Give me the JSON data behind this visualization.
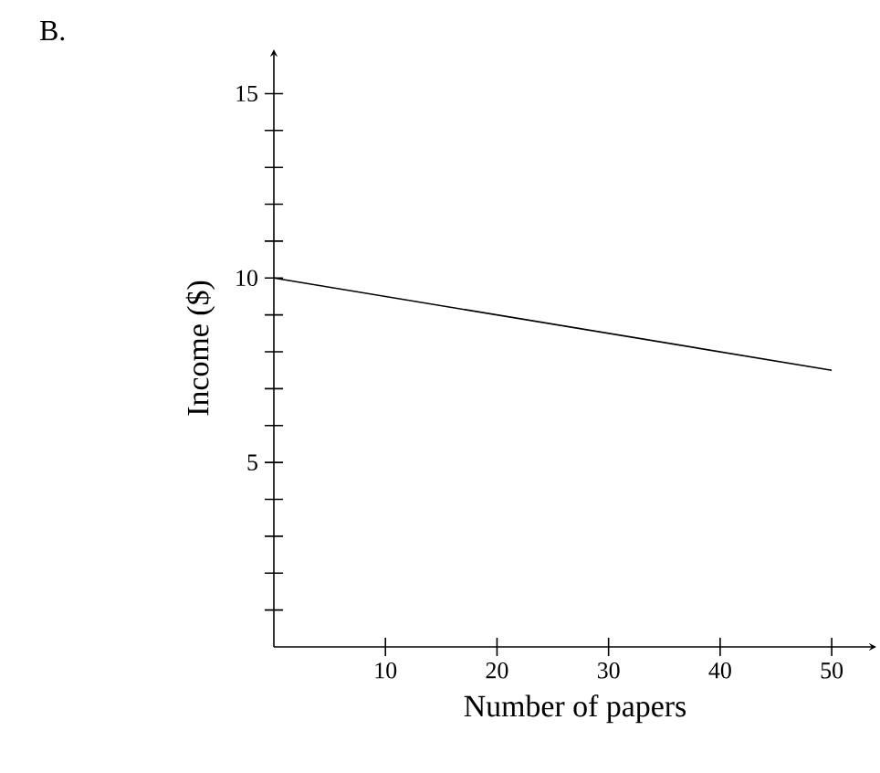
{
  "chart_data": {
    "type": "line",
    "xlabel": "Number of papers",
    "ylabel": "Income ($)",
    "x": [
      0,
      50
    ],
    "series": [
      {
        "color": "#000000",
        "values": [
          10,
          7.5
        ]
      }
    ],
    "xlim": [
      0,
      54
    ],
    "ylim": [
      0,
      16.2
    ],
    "xticks": [
      10,
      20,
      30,
      40,
      50
    ],
    "yticks": [
      {
        "value": 1,
        "label": null
      },
      {
        "value": 2,
        "label": null
      },
      {
        "value": 3,
        "label": null
      },
      {
        "value": 4,
        "label": null
      },
      5,
      {
        "value": 6,
        "label": null
      },
      {
        "value": 7,
        "label": null
      },
      {
        "value": 8,
        "label": null
      },
      {
        "value": 9,
        "label": null
      },
      10,
      {
        "value": 11,
        "label": null
      },
      {
        "value": 12,
        "label": null
      },
      {
        "value": 13,
        "label": null
      },
      {
        "value": 14,
        "label": null
      },
      15
    ],
    "marker": "none",
    "line_style": "solid",
    "annotations": [
      "B."
    ]
  }
}
